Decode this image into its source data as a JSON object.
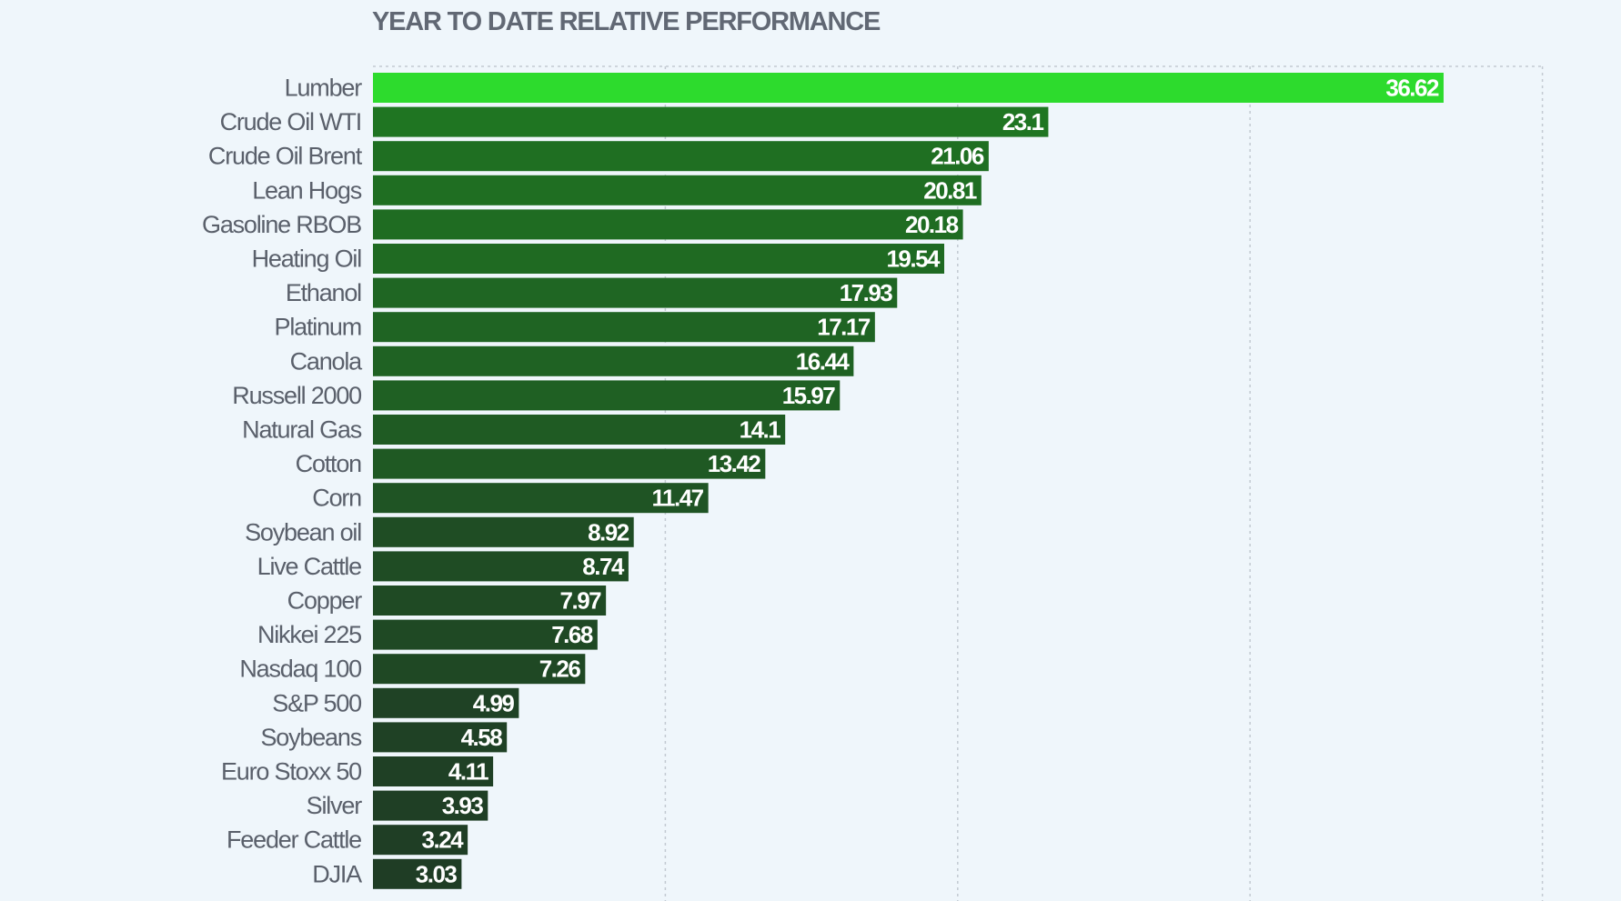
{
  "chart_data": {
    "type": "bar",
    "orientation": "horizontal",
    "title": "YEAR TO DATE RELATIVE PERFORMANCE",
    "categories": [
      "Lumber",
      "Crude Oil WTI",
      "Crude Oil Brent",
      "Lean Hogs",
      "Gasoline RBOB",
      "Heating Oil",
      "Ethanol",
      "Platinum",
      "Canola",
      "Russell 2000",
      "Natural Gas",
      "Cotton",
      "Corn",
      "Soybean oil",
      "Live Cattle",
      "Copper",
      "Nikkei 225",
      "Nasdaq 100",
      "S&P 500",
      "Soybeans",
      "Euro Stoxx 50",
      "Silver",
      "Feeder Cattle",
      "DJIA"
    ],
    "values": [
      36.62,
      23.1,
      21.06,
      20.81,
      20.18,
      19.54,
      17.93,
      17.17,
      16.44,
      15.97,
      14.1,
      13.42,
      11.47,
      8.92,
      8.74,
      7.97,
      7.68,
      7.26,
      4.99,
      4.58,
      4.11,
      3.93,
      3.24,
      3.03
    ],
    "value_labels": [
      "36.62",
      "23.1",
      "21.06",
      "20.81",
      "20.18",
      "19.54",
      "17.93",
      "17.17",
      "16.44",
      "15.97",
      "14.1",
      "13.42",
      "11.47",
      "8.92",
      "8.74",
      "7.97",
      "7.68",
      "7.26",
      "4.99",
      "4.58",
      "4.11",
      "3.93",
      "3.24",
      "3.03"
    ],
    "xlim": [
      0,
      40
    ],
    "grid": true,
    "colors": {
      "highest": "#2ddb2d",
      "lowest": "#1f3d25",
      "category_text": "#5a606b",
      "value_text": "#ffffff",
      "gridline": "#c3cad2"
    }
  }
}
